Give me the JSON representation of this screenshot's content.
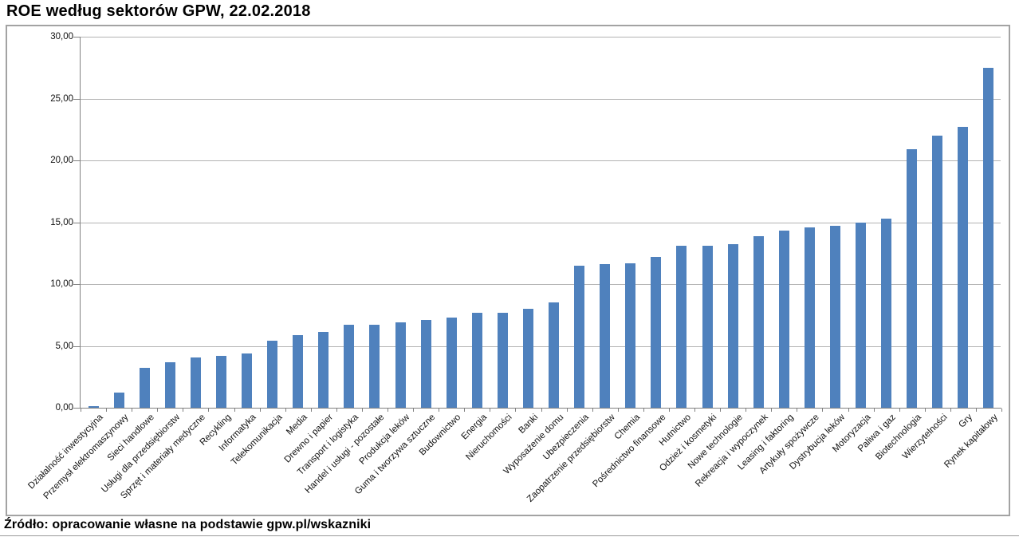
{
  "title": "ROE według sektorów GPW, 22.02.2018",
  "footer": "Źródło: opracowanie własne na podstawie gpw.pl/wskazniki",
  "colors": {
    "bar": "#4f81bd",
    "gridline": "#b3b3b3",
    "axis": "#808080",
    "frame_border": "#a3a3a3",
    "text": "#000000"
  },
  "chart_data": {
    "type": "bar",
    "title": "ROE według sektorów GPW, 22.02.2018",
    "xlabel": "",
    "ylabel": "",
    "ylim": [
      0,
      30
    ],
    "ytick_step": 5,
    "ytick_labels": [
      "0,00",
      "5,00",
      "10,00",
      "15,00",
      "20,00",
      "25,00",
      "30,00"
    ],
    "grid": true,
    "legend": "none",
    "categories": [
      "Działalność inwestycyjna",
      "Przemysł elektromaszynowy",
      "Sieci handlowe",
      "Usługi dla przedsiębiorstw",
      "Sprzęt i materiały medyczne",
      "Recykling",
      "Informatyka",
      "Telekomunikacja",
      "Media",
      "Drewno i papier",
      "Transport i logistyka",
      "Handel i usługi - pozostałe",
      "Produkcja leków",
      "Guma i tworzywa sztuczne",
      "Budownictwo",
      "Energia",
      "Nieruchomości",
      "Banki",
      "Wyposażenie domu",
      "Ubezpieczenia",
      "Zaopatrzenie przedsiębiorstw",
      "Chemia",
      "Pośrednictwo finansowe",
      "Hutnictwo",
      "Odzież i kosmetyki",
      "Nowe technologie",
      "Rekreacja i wypoczynek",
      "Leasing i faktoring",
      "Artykuły spożywcze",
      "Dystrybucja leków",
      "Motoryzacja",
      "Paliwa i gaz",
      "Biotechnologia",
      "Wierzytelności",
      "Gry",
      "Rynek kapitałowy"
    ],
    "values": [
      0.15,
      1.25,
      3.2,
      3.7,
      4.05,
      4.2,
      4.4,
      5.4,
      5.9,
      6.1,
      6.7,
      6.7,
      6.9,
      7.1,
      7.3,
      7.7,
      7.7,
      8.0,
      8.5,
      11.5,
      11.6,
      11.7,
      12.2,
      13.1,
      13.1,
      13.2,
      13.9,
      14.3,
      14.6,
      14.7,
      15.0,
      15.3,
      20.9,
      22.0,
      22.7,
      27.5
    ]
  }
}
